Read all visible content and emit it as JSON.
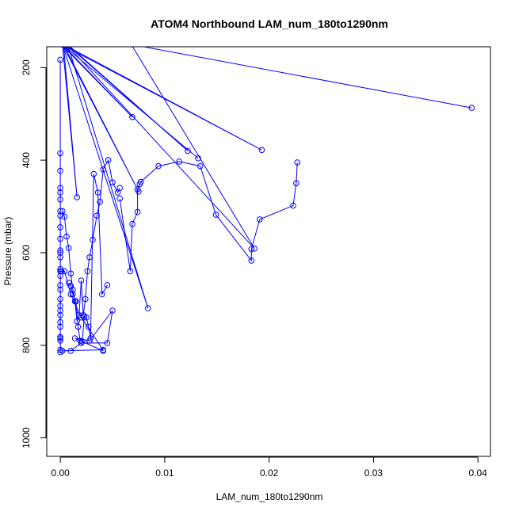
{
  "chart_data": {
    "type": "scatter",
    "title": "ATOM4 Northbound LAM_num_180to1290nm",
    "xlabel": "LAM_num_180to1290nm",
    "ylabel": "Pressure (mbar)",
    "xlim": [
      -0.0013,
      0.0412
    ],
    "ylim": [
      1040,
      155
    ],
    "y_reversed": true,
    "xticks": [
      0,
      0.01,
      0.02,
      0.03,
      0.04
    ],
    "xtick_labels": [
      "0.00",
      "0.01",
      "0.02",
      "0.03",
      "0.04"
    ],
    "yticks": [
      200,
      400,
      600,
      800,
      1000
    ],
    "ytick_labels": [
      "200",
      "400",
      "600",
      "800",
      "1000"
    ],
    "connected": true,
    "color": "#0000ff",
    "marker": "open-circle",
    "grid": false,
    "legend": "none",
    "series": [
      {
        "x": [
          0.0394,
          0.0068,
          0.0186,
          0.0006,
          0.0122,
          0.0007,
          0.0084,
          0.0002,
          0.0016,
          0.0003,
          0.0193,
          0.0001,
          0.0069,
          0.0002,
          0.0132,
          0.0002,
          0.0075,
          0.0003
        ],
        "y": [
          287,
          150,
          591,
          150,
          380,
          150,
          720,
          150,
          480,
          150,
          378,
          150,
          307,
          150,
          396,
          150,
          468,
          150
        ]
      },
      {
        "x": [
          0.0,
          0.0,
          0.0,
          0.0,
          0.0,
          0.0,
          0.0,
          0.0,
          0.0,
          0.0,
          0.0,
          0.0,
          0.0,
          0.0,
          0.0,
          0.0,
          0.0,
          0.0,
          0.0,
          0.0,
          0.0,
          0.0,
          0.0,
          0.0,
          0.0,
          0.0,
          0.0,
          0.0,
          0.0
        ],
        "y": [
          183,
          385,
          423,
          460,
          470,
          485,
          510,
          520,
          545,
          570,
          595,
          600,
          610,
          635,
          640,
          650,
          670,
          680,
          700,
          715,
          725,
          735,
          750,
          760,
          782,
          785,
          790,
          810,
          815
        ]
      },
      {
        "x": [
          0.0002,
          0.0004,
          0.0006,
          0.0008,
          0.001,
          0.0012,
          0.0014,
          0.0016,
          0.0018,
          0.002,
          0.0022,
          0.0024,
          0.0026,
          0.0028,
          0.0031,
          0.0035,
          0.0038,
          0.0041,
          0.0046,
          0.005,
          0.0055,
          0.0057
        ],
        "y": [
          510,
          522,
          565,
          590,
          645,
          680,
          705,
          748,
          735,
          660,
          735,
          700,
          640,
          610,
          572,
          520,
          490,
          420,
          400,
          448,
          470,
          460
        ]
      },
      {
        "x": [
          0.0008,
          0.001,
          0.0012,
          0.0015,
          0.0017,
          0.0019,
          0.0021,
          0.0023,
          0.0025,
          0.0027,
          0.0029,
          0.0032,
          0.0036,
          0.004,
          0.0045
        ],
        "y": [
          665,
          672,
          690,
          705,
          760,
          790,
          792,
          738,
          740,
          760,
          785,
          430,
          470,
          690,
          670
        ]
      },
      {
        "x": [
          0.0227,
          0.0226,
          0.0223,
          0.0191,
          0.0183,
          0.0183,
          0.0149,
          0.0134,
          0.0114,
          0.0094,
          0.0077,
          0.0076,
          0.0074,
          0.0074,
          0.0069,
          0.0067,
          0.0057
        ],
        "y": [
          405,
          450,
          498,
          528,
          592,
          617,
          518,
          413,
          403,
          413,
          447,
          452,
          463,
          512,
          538,
          640,
          483
        ]
      },
      {
        "x": [
          0.0001,
          0.0004,
          0.001,
          0.002,
          0.0041,
          0.0002,
          0.001,
          0.002,
          0.0045,
          0.005,
          0.0028,
          0.0014,
          0.0041
        ],
        "y": [
          640,
          640,
          690,
          740,
          810,
          812,
          812,
          795,
          795,
          725,
          790,
          785,
          812
        ]
      }
    ]
  }
}
